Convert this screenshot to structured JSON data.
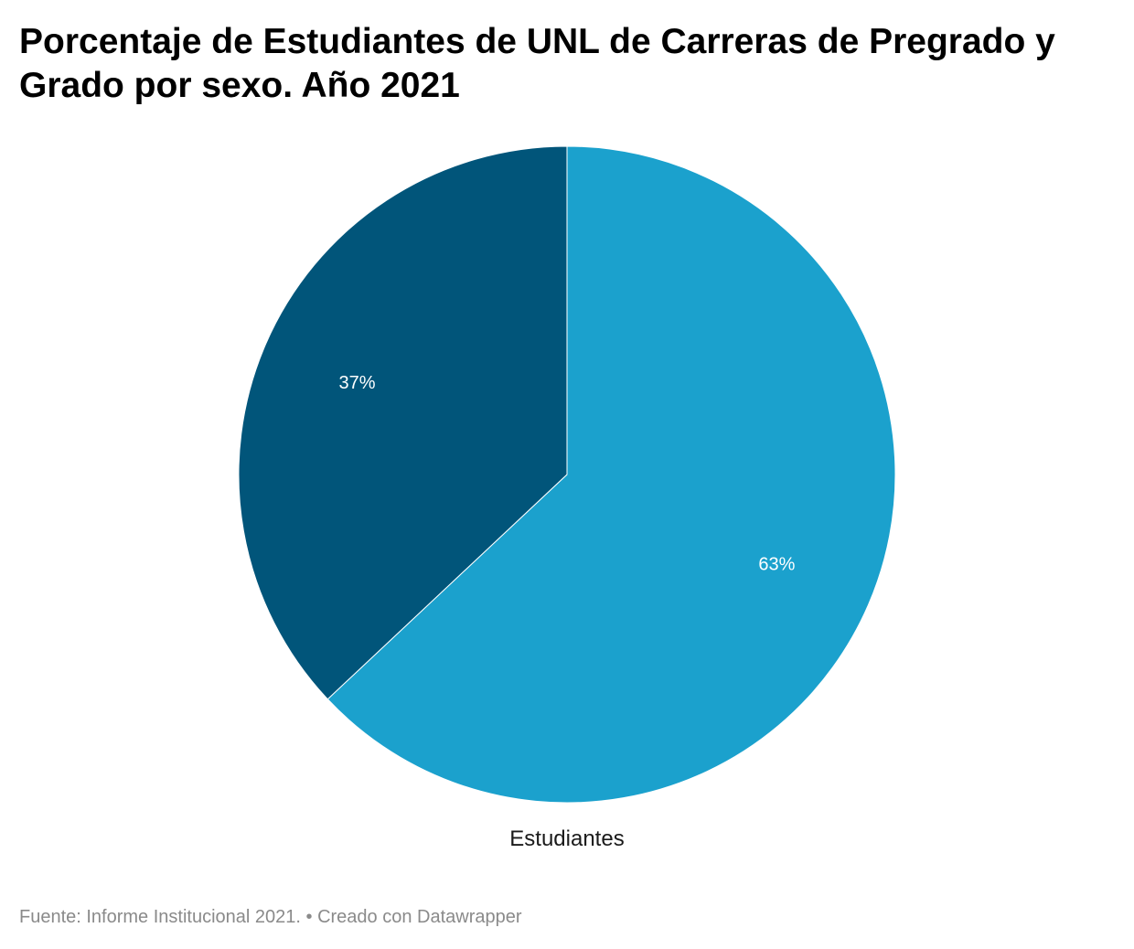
{
  "chart_data": {
    "type": "pie",
    "title": "Porcentaje de Estudiantes de UNL de Carreras de Pregrado y Grado por sexo. Año 2021",
    "category": "Estudiantes",
    "slices": [
      {
        "value": 63,
        "label": "63%",
        "color": "#1ba1cd"
      },
      {
        "value": 37,
        "label": "37%",
        "color": "#01557a"
      }
    ]
  },
  "footer": {
    "text": "Fuente: Informe Institucional 2021. • Creado con Datawrapper"
  }
}
